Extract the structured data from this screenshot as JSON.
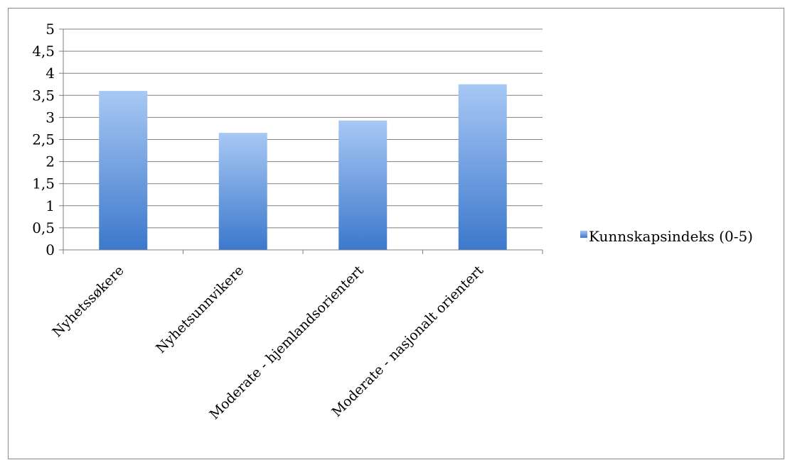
{
  "chart_data": {
    "type": "bar",
    "categories": [
      "Nyhetssøkere",
      "Nyhetsunnvikere",
      "Moderate - hjemlandsorientert",
      "Moderate - nasjonalt orientert"
    ],
    "series": [
      {
        "name": "Kunnskapsindeks (0-5)",
        "values": [
          3.6,
          2.65,
          2.93,
          3.75
        ]
      }
    ],
    "ylim": [
      0,
      5
    ],
    "yticks": [
      "0",
      "0,5",
      "1",
      "1,5",
      "2",
      "2,5",
      "3",
      "3,5",
      "4",
      "4,5",
      "5"
    ],
    "ytick_values": [
      0,
      0.5,
      1,
      1.5,
      2,
      2.5,
      3,
      3.5,
      4,
      4.5,
      5
    ],
    "grid": true,
    "legend_position": "right",
    "colors": {
      "bar_top": "#a8c8f4",
      "bar_bottom": "#3c78cc",
      "grid": "#808080"
    }
  }
}
